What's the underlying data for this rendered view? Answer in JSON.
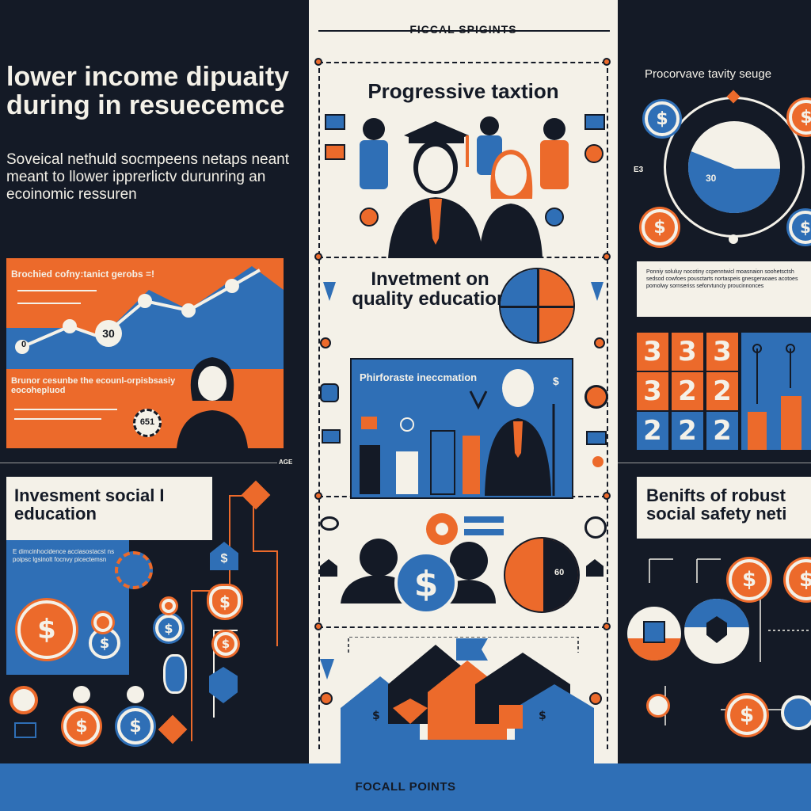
{
  "header": {
    "title": "FICCAL SPIGINTS"
  },
  "footer": {
    "title": "FOCALL POINTS"
  },
  "left_top": {
    "title": "lower income dipuaity during in resuecemce",
    "subtitle": "Soveical nethuld socmpeens netaps neant meant to llower ipprerlictv durunring an ecoinomic ressuren"
  },
  "left_chart": {
    "label": "Brochied cofny:tanict gerobs =!",
    "node_value": "30",
    "zero_left": "0"
  },
  "left_mid": {
    "label": "Brunor cesunbe the ecounl-orpisbsasiy eocohepluod",
    "badge": "651"
  },
  "left_bottom": {
    "title": "Invesment social I education",
    "corner": "AGE",
    "fine_print": "E dimcinhocidence acciasostacst ns poipsc lgsinolt focnvy picectemsn"
  },
  "center_top": {
    "title": "Progressive taxtion"
  },
  "center_mid": {
    "title": "Invetment on quality education",
    "board": "Phirforaste ineccmation"
  },
  "center_bottom": {
    "pie_label": "60"
  },
  "right_top": {
    "title": "Procorvave tavity seuge",
    "pie_value": "30",
    "side_label": "E3",
    "fine_print": "Ponniy soluluy nocotiny ccpenntwicl moasnaion soohetsctsh sedsod cowfoes pousctarts nortaspeis gnesgeraoaes acotoes pomolwy sornseriss seforvtunciy proucinnonces"
  },
  "right_cards": {
    "row1": [
      "3",
      "3",
      "3"
    ],
    "row2": [
      "3",
      "2",
      "2"
    ],
    "row3": [
      "2",
      "2",
      "2"
    ]
  },
  "right_bottom": {
    "title": "Benifts of robust social safety neti"
  },
  "icons": {
    "coin": "$"
  }
}
